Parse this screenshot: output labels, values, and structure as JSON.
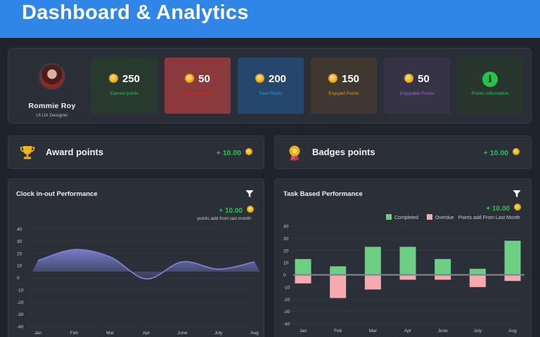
{
  "header": {
    "title": "Dashboard & Analytics"
  },
  "profile": {
    "name": "Rommie Roy",
    "role": "UI UX Designer"
  },
  "stats": [
    {
      "value": "250",
      "label": "Earned points",
      "bg": "#283a2e",
      "label_color": "#33c060"
    },
    {
      "value": "50",
      "label": "Negative points",
      "bg": "#8a3a3c",
      "label_color": "#e02020"
    },
    {
      "value": "200",
      "label": "Total Points",
      "bg": "#24476b",
      "label_color": "#3b8fe0"
    },
    {
      "value": "150",
      "label": "Enjoyed Points",
      "bg": "#3e3831",
      "label_color": "#e09a30"
    },
    {
      "value": "50",
      "label": "Enjoyable Points",
      "bg": "#363347",
      "label_color": "#9a66e0"
    }
  ],
  "info_card": {
    "label": "Points Information",
    "bg": "#28362d",
    "label_color": "#33c060"
  },
  "award": {
    "title": "Award points",
    "value": "+ 10.00"
  },
  "badges": {
    "title": "Badges points",
    "value": "+ 10.00"
  },
  "clock_chart": {
    "title": "Clock in-out Performance",
    "points": "+ 10.00",
    "subtitle": "points add from last month"
  },
  "task_chart": {
    "title": "Task Based Performance",
    "points": "+ 10.00",
    "legend_completed": "Completed",
    "legend_overdue": "Overdue",
    "subtitle": "Points add From Last Month"
  },
  "chart_data": [
    {
      "type": "area",
      "categories": [
        "Jan",
        "Feb",
        "Mar",
        "Apr",
        "June",
        "July",
        "Aug"
      ],
      "series": [
        {
          "values": [
            14,
            23,
            17,
            -1,
            13,
            7,
            13
          ]
        }
      ],
      "ylim": [
        -40,
        40
      ],
      "yticks": [
        40,
        30,
        20,
        10,
        0,
        -10,
        -20,
        -30,
        -40
      ],
      "color": "#7a7fd0"
    },
    {
      "type": "bar",
      "categories": [
        "Jan",
        "Feb",
        "Mar",
        "Apr",
        "June",
        "July",
        "Aug"
      ],
      "series": [
        {
          "name": "Completed",
          "values": [
            13,
            7,
            23,
            23,
            13,
            5,
            28
          ],
          "color": "#6ccf84"
        },
        {
          "name": "Overdue",
          "values": [
            -7,
            -19,
            -12,
            -4,
            -4,
            -10,
            -5
          ],
          "color": "#f6a9ae"
        }
      ],
      "ylim": [
        -40,
        40
      ],
      "yticks": [
        40,
        30,
        20,
        10,
        0,
        -10,
        -20,
        -30,
        -40
      ]
    }
  ]
}
